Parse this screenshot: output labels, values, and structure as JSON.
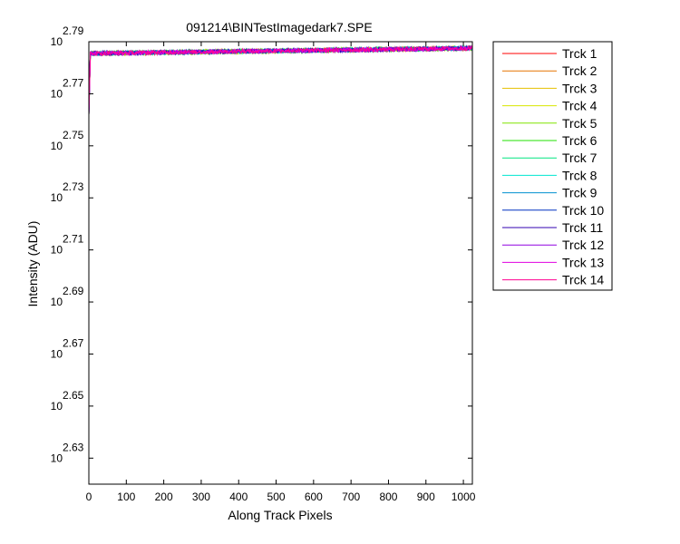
{
  "chart_data": {
    "type": "line",
    "title": "091214\\BINTestImagedark7.SPE",
    "xlabel": "Along Track Pixels",
    "ylabel": "Intensity (ADU)",
    "xlim": [
      0,
      1024
    ],
    "ylim_exponent": [
      2.62,
      2.79
    ],
    "y_scale": "log",
    "y_tick_base": "10",
    "x_ticks": [
      0,
      100,
      200,
      300,
      400,
      500,
      600,
      700,
      800,
      900,
      1000
    ],
    "y_tick_exponents": [
      "2.63",
      "2.65",
      "2.67",
      "2.69",
      "2.71",
      "2.73",
      "2.75",
      "2.77",
      "2.79"
    ],
    "legend_position": "outside-right",
    "grid": false,
    "series": [
      {
        "name": "Trck 1",
        "color": "#ff0000"
      },
      {
        "name": "Trck 2",
        "color": "#e67300"
      },
      {
        "name": "Trck 3",
        "color": "#e6c000"
      },
      {
        "name": "Trck 4",
        "color": "#d8e600"
      },
      {
        "name": "Trck 5",
        "color": "#80e600"
      },
      {
        "name": "Trck 6",
        "color": "#20e000"
      },
      {
        "name": "Trck 7",
        "color": "#00e680"
      },
      {
        "name": "Trck 8",
        "color": "#00e6d0"
      },
      {
        "name": "Trck 9",
        "color": "#0090d0"
      },
      {
        "name": "Trck 10",
        "color": "#0030c0"
      },
      {
        "name": "Trck 11",
        "color": "#3000b0"
      },
      {
        "name": "Trck 12",
        "color": "#9000e0"
      },
      {
        "name": "Trck 13",
        "color": "#e000e0"
      },
      {
        "name": "Trck 14",
        "color": "#ff0090"
      }
    ],
    "series_level": {
      "start_value_exponent": 2.762,
      "plateau_start_exponent": 2.7855,
      "plateau_end_exponent": 2.7875,
      "noise_exponent": 0.0008
    }
  }
}
